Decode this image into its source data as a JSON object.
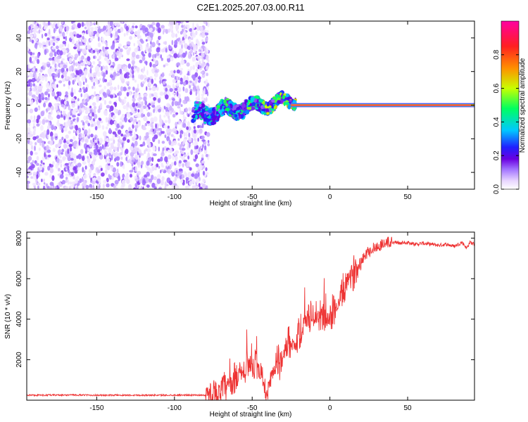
{
  "figure": {
    "title": "C2E1.2025.207.03.00.R11"
  },
  "chart_data": [
    {
      "id": "spectrogram",
      "type": "heatmap",
      "xlabel": "Height of straight line (km)",
      "ylabel": "Frequency (Hz)",
      "xlim": [
        -195,
        93
      ],
      "ylim": [
        -50,
        50
      ],
      "xticks": [
        -150,
        -100,
        -50,
        0,
        50
      ],
      "yticks": [
        -40,
        -20,
        0,
        20,
        40
      ],
      "grid": false,
      "colorbar": {
        "label": "Normalized spectral amplitude",
        "range": [
          0,
          1
        ],
        "ticks": [
          0.0,
          0.2,
          0.4,
          0.6,
          0.8
        ],
        "colormap": [
          "#ffffff",
          "#e8d6ff",
          "#a070ff",
          "#6a00e0",
          "#2020ff",
          "#00c8ff",
          "#00ff60",
          "#c8ff00",
          "#ff9000",
          "#ff2020",
          "#ff00a0"
        ]
      },
      "regions": [
        {
          "name": "noise",
          "x_range": [
            -195,
            -78
          ],
          "y_range": [
            -50,
            50
          ],
          "amplitude": [
            0.05,
            0.25
          ]
        },
        {
          "name": "transition",
          "x_range": [
            -88,
            -22
          ],
          "y_range": [
            -15,
            10
          ],
          "amplitude": [
            0.2,
            0.8
          ]
        },
        {
          "name": "carrier",
          "x_range": [
            -25,
            93
          ],
          "y_center": 0,
          "amplitude": [
            0.9,
            1.0
          ]
        }
      ]
    },
    {
      "id": "snr",
      "type": "line",
      "xlabel": "Height of straight line (km)",
      "ylabel": "SNR (10 * v/v)",
      "xlim": [
        -195,
        93
      ],
      "ylim": [
        0,
        8300
      ],
      "xticks": [
        -150,
        -100,
        -50,
        0,
        50
      ],
      "yticks": [
        2000,
        4000,
        6000,
        8000
      ],
      "grid": false,
      "line_color": "#ee3333",
      "series": [
        {
          "x": [
            -195,
            -185,
            -175,
            -165,
            -155,
            -145,
            -135,
            -125,
            -115,
            -105,
            -95,
            -85,
            -80,
            -75,
            -70,
            -65,
            -62,
            -60,
            -58,
            -56,
            -54,
            -52,
            -50,
            -48,
            -46,
            -44,
            -42,
            -40,
            -38,
            -36,
            -34,
            -32,
            -30,
            -28,
            -26,
            -24,
            -22,
            -20,
            -18,
            -16,
            -14,
            -12,
            -10,
            -8,
            -6,
            -4,
            -2,
            0,
            2,
            4,
            6,
            8,
            10,
            12,
            14,
            16,
            18,
            20,
            22,
            24,
            26,
            28,
            30,
            32,
            34,
            36,
            38,
            40,
            45,
            50,
            55,
            60,
            65,
            70,
            75,
            80,
            85,
            88,
            90,
            93
          ],
          "y": [
            250,
            250,
            250,
            260,
            250,
            240,
            250,
            250,
            245,
            250,
            255,
            250,
            250,
            300,
            450,
            700,
            900,
            1200,
            1500,
            1300,
            1700,
            2000,
            1400,
            1800,
            1100,
            1500,
            600,
            300,
            900,
            1500,
            1900,
            1800,
            2300,
            2700,
            2900,
            3000,
            2600,
            3300,
            3500,
            3800,
            4200,
            4000,
            4300,
            3900,
            4200,
            4100,
            3900,
            4000,
            4400,
            4600,
            4800,
            5300,
            5700,
            5900,
            6100,
            6400,
            6600,
            6900,
            7100,
            7300,
            7400,
            7500,
            7550,
            7650,
            7700,
            7750,
            7800,
            7800,
            7750,
            7800,
            7700,
            7750,
            7700,
            7650,
            7700,
            7600,
            7800,
            7500,
            7800,
            7700
          ]
        }
      ]
    }
  ]
}
